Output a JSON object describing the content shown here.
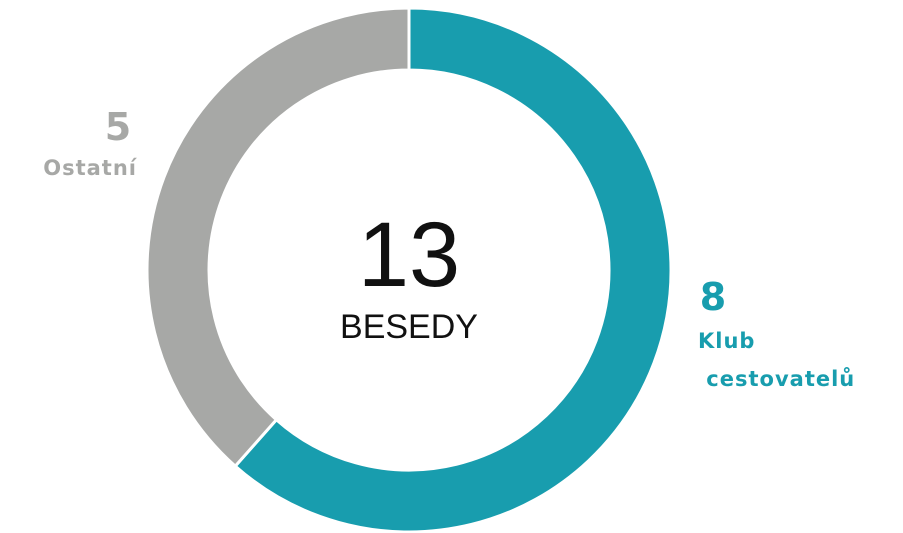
{
  "chart_data": {
    "type": "donut",
    "categories": [
      "Klub cestovatelů",
      "Ostatní"
    ],
    "values": [
      8,
      5
    ],
    "colors": [
      "#189dae",
      "#a7a8a6"
    ],
    "center_value": 13,
    "center_label": "BESEDY"
  }
}
